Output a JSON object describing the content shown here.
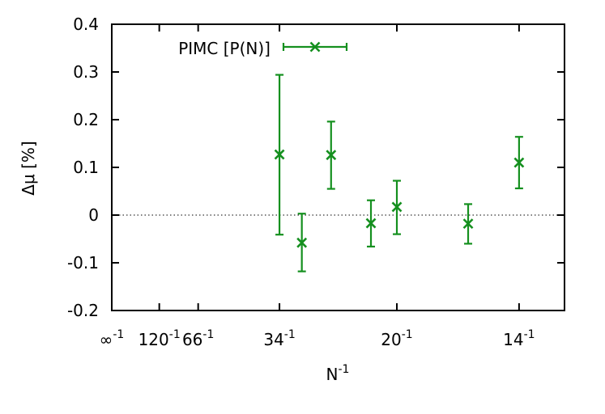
{
  "chart_data": {
    "type": "scatter",
    "title": "",
    "xlabel_base": "N",
    "xlabel_exp": "-1",
    "ylabel": "Δμ [%]",
    "ylim": [
      -0.2,
      0.4
    ],
    "x_tick_text": "-1",
    "y_ticks": [
      {
        "value": 0.4,
        "label": "0.4"
      },
      {
        "value": 0.3,
        "label": "0.3"
      },
      {
        "value": 0.2,
        "label": "0.2"
      },
      {
        "value": 0.1,
        "label": "0.1"
      },
      {
        "value": 0.0,
        "label": "0"
      },
      {
        "value": -0.1,
        "label": "-0.1"
      },
      {
        "value": -0.2,
        "label": "-0.2"
      }
    ],
    "x_ticks": [
      {
        "inv": 0.0,
        "label": "∞"
      },
      {
        "inv": 0.008333,
        "label": "120"
      },
      {
        "inv": 0.015152,
        "label": "66"
      },
      {
        "inv": 0.029412,
        "label": "34"
      },
      {
        "inv": 0.05,
        "label": "20"
      },
      {
        "inv": 0.071429,
        "label": "14"
      }
    ],
    "x_range": [
      0.0,
      0.0794
    ],
    "zero_line": true,
    "legend": {
      "position": "top-left",
      "label": "PIMC [P(N)]"
    },
    "color": "#15901f",
    "series": [
      {
        "name": "PIMC [P(N)]",
        "points": [
          {
            "x": 0.029412,
            "y": 0.127,
            "lo": -0.041,
            "hi": 0.294
          },
          {
            "x": 0.033333,
            "y": -0.058,
            "lo": -0.118,
            "hi": 0.003
          },
          {
            "x": 0.038462,
            "y": 0.126,
            "lo": 0.055,
            "hi": 0.196
          },
          {
            "x": 0.045455,
            "y": -0.017,
            "lo": -0.066,
            "hi": 0.031
          },
          {
            "x": 0.05,
            "y": 0.017,
            "lo": -0.04,
            "hi": 0.072
          },
          {
            "x": 0.0625,
            "y": -0.018,
            "lo": -0.06,
            "hi": 0.023
          },
          {
            "x": 0.071429,
            "y": 0.11,
            "lo": 0.056,
            "hi": 0.164
          }
        ]
      }
    ]
  }
}
